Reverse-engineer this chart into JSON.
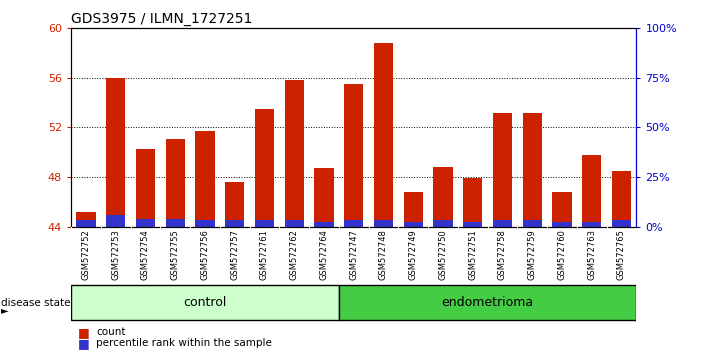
{
  "title": "GDS3975 / ILMN_1727251",
  "samples": [
    "GSM572752",
    "GSM572753",
    "GSM572754",
    "GSM572755",
    "GSM572756",
    "GSM572757",
    "GSM572761",
    "GSM572762",
    "GSM572764",
    "GSM572747",
    "GSM572748",
    "GSM572749",
    "GSM572750",
    "GSM572751",
    "GSM572758",
    "GSM572759",
    "GSM572760",
    "GSM572763",
    "GSM572765"
  ],
  "red_values": [
    45.2,
    56.0,
    50.3,
    51.1,
    51.7,
    47.6,
    53.5,
    55.8,
    48.7,
    55.5,
    58.8,
    46.8,
    48.8,
    47.9,
    53.2,
    53.2,
    46.8,
    49.8,
    48.5
  ],
  "blue_values": [
    0.5,
    0.9,
    0.6,
    0.6,
    0.5,
    0.5,
    0.5,
    0.5,
    0.4,
    0.5,
    0.5,
    0.4,
    0.5,
    0.4,
    0.5,
    0.5,
    0.4,
    0.4,
    0.5
  ],
  "base": 44.0,
  "ymin": 44.0,
  "ymax": 60.0,
  "yticks_left": [
    44,
    48,
    52,
    56,
    60
  ],
  "right_ytick_vals": [
    0,
    25,
    50,
    75,
    100
  ],
  "right_yticklabels": [
    "0%",
    "25%",
    "50%",
    "75%",
    "100%"
  ],
  "control_count": 9,
  "endometrioma_count": 10,
  "bar_color_red": "#cc2200",
  "bar_color_blue": "#3333cc",
  "control_bg": "#ccffcc",
  "endometrioma_bg": "#44cc44",
  "xtick_bg": "#c8c8c8",
  "plot_bg": "#ffffff",
  "axis_color_red": "#cc2200",
  "axis_color_blue": "#0000cc"
}
